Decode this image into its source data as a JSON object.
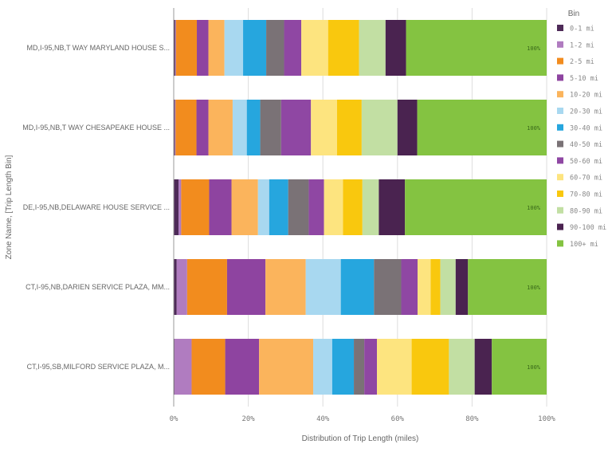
{
  "chart_data": {
    "type": "bar",
    "orientation": "horizontal",
    "stacked": true,
    "xlabel": "Distribution of Trip Length (miles)",
    "ylabel": "Zone Name, [Trip Length Bin]",
    "xlim": [
      0,
      100
    ],
    "x_ticks": [
      "0%",
      "20%",
      "40%",
      "60%",
      "80%",
      "100%"
    ],
    "grid": true,
    "legend": {
      "title": "Bin",
      "position": "right"
    },
    "categories": [
      "MD,I-95,NB,T WAY MARYLAND HOUSE S...",
      "MD,I-95,NB,T WAY CHESAPEAKE HOUSE ...",
      "DE,I-95,NB,DELAWARE HOUSE SERVICE ...",
      "CT,I-95,NB,DARIEN SERVICE PLAZA, MM...",
      "CT,I-95,SB,MILFORD SERVICE PLAZA, M..."
    ],
    "total_labels": [
      "100%",
      "100%",
      "100%",
      "100%",
      "100%"
    ],
    "series": [
      {
        "name": "0-1 mi",
        "color": "#4e2a58",
        "values": [
          0.4,
          0.3,
          1.3,
          0.8,
          0.2
        ]
      },
      {
        "name": "1-2 mi",
        "color": "#b07cc0",
        "values": [
          0.2,
          0.2,
          0.7,
          2.8,
          4.6
        ]
      },
      {
        "name": "2-5 mi",
        "color": "#f28c1e",
        "values": [
          5.6,
          5.6,
          7.5,
          10.7,
          9.0
        ]
      },
      {
        "name": "5-10 mi",
        "color": "#8e44a0",
        "values": [
          3.1,
          3.2,
          6.0,
          10.3,
          9.1
        ]
      },
      {
        "name": "10-20 mi",
        "color": "#fbb45c",
        "values": [
          4.3,
          6.5,
          7.1,
          10.8,
          14.5
        ]
      },
      {
        "name": "20-30 mi",
        "color": "#a8d8f0",
        "values": [
          5.0,
          3.8,
          3.0,
          9.4,
          5.1
        ]
      },
      {
        "name": "30-40 mi",
        "color": "#26a6de",
        "values": [
          6.2,
          3.6,
          5.1,
          8.9,
          5.8
        ]
      },
      {
        "name": "40-50 mi",
        "color": "#7a7276",
        "values": [
          4.8,
          5.6,
          5.5,
          7.3,
          2.8
        ]
      },
      {
        "name": "50-60 mi",
        "color": "#8f47a3",
        "values": [
          4.6,
          8.0,
          4.1,
          4.4,
          3.4
        ]
      },
      {
        "name": "60-70 mi",
        "color": "#fde47f",
        "values": [
          7.2,
          7.0,
          5.1,
          3.5,
          9.3
        ]
      },
      {
        "name": "70-80 mi",
        "color": "#f9c80e",
        "values": [
          8.3,
          6.6,
          5.2,
          2.6,
          10.0
        ]
      },
      {
        "name": "80-90 mi",
        "color": "#c2dfa3",
        "values": [
          7.1,
          9.6,
          4.4,
          4.1,
          6.9
        ]
      },
      {
        "name": "90-100 mi",
        "color": "#4a2350",
        "values": [
          5.5,
          5.3,
          7.0,
          3.3,
          4.6
        ]
      },
      {
        "name": "100+ mi",
        "color": "#84c341",
        "values": [
          37.7,
          34.7,
          38.0,
          21.1,
          14.7
        ]
      }
    ]
  }
}
